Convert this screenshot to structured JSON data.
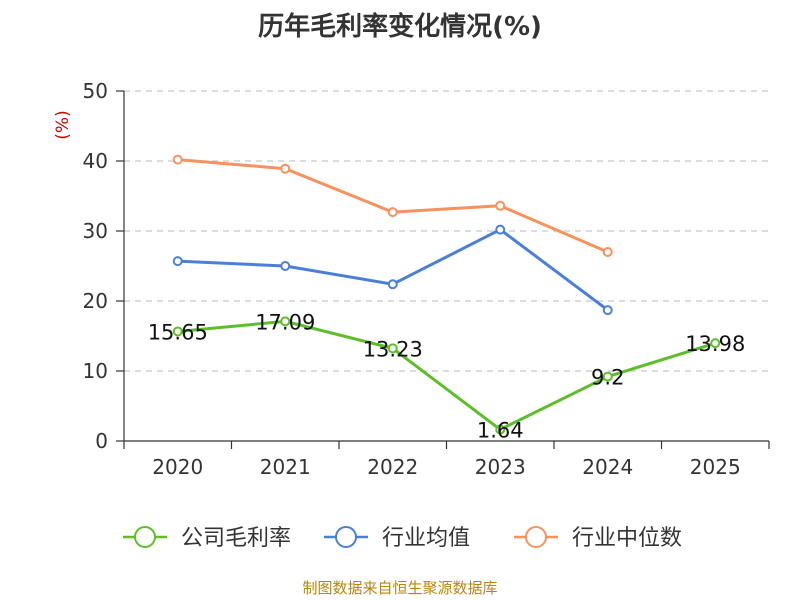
{
  "chart_data": {
    "type": "line",
    "title": "历年毛利率变化情况(%)",
    "ylabel": "(%)",
    "xlabel": "",
    "categories": [
      "2020",
      "2021",
      "2022",
      "2023",
      "2024",
      "2025"
    ],
    "ylim": [
      0,
      50
    ],
    "yticks": [
      "0",
      "10",
      "20",
      "30",
      "40",
      "50"
    ],
    "grid": true,
    "legend_position": "bottom",
    "series": [
      {
        "name": "公司毛利率",
        "color": "#5dbe2a",
        "values": [
          15.65,
          17.09,
          13.23,
          1.64,
          9.2,
          13.98
        ],
        "labels": [
          "15.65",
          "17.09",
          "13.23",
          "1.64",
          "9.2",
          "13.98"
        ]
      },
      {
        "name": "行业均值",
        "color": "#4a7fd8",
        "values": [
          25.7,
          25.0,
          22.4,
          30.2,
          18.7,
          null
        ]
      },
      {
        "name": "行业中位数",
        "color": "#f5925e",
        "values": [
          40.2,
          38.9,
          32.7,
          33.6,
          27.0,
          null
        ]
      }
    ]
  },
  "source_note": "制图数据来自恒生聚源数据库"
}
